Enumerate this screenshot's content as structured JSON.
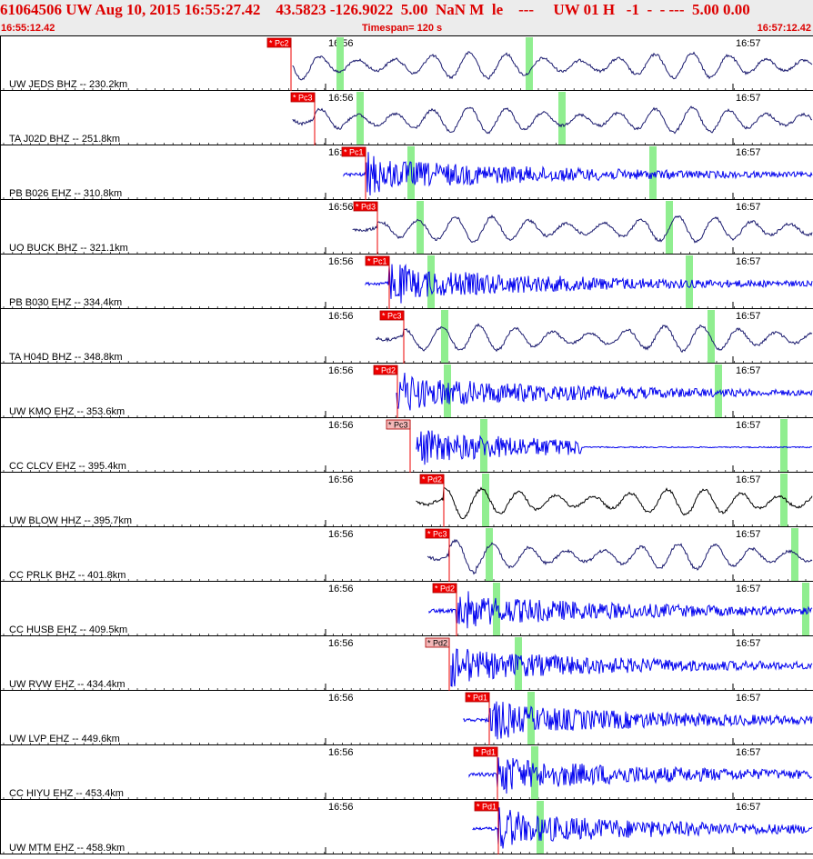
{
  "header": {
    "title": "61064506 UW Aug 10, 2015 16:55:27.42    43.5823 -126.9022  5.00  NaN M  le    ---     UW 01 H   -1  -  - ---  5.00 0.00",
    "start_time": "16:55:12.42",
    "timespan": "Timespan= 120 s",
    "end_time": "16:57:12.42"
  },
  "tick_labels": [
    "16:56",
    "16:57"
  ],
  "colors": {
    "header_text": "#dd0000",
    "pick_flag": "#ee0000",
    "pick_flag_alt": "#f4b8b8",
    "s_marker": "#90ee90",
    "trace_blue": "#0000ee",
    "trace_navy": "#1a1a6e",
    "trace_black": "#000000"
  },
  "traces": [
    {
      "label": "UW JEDS BHZ -- 230.2km",
      "pick": "* Pc2",
      "pick_style": "solid",
      "color": "navy",
      "type": "wave"
    },
    {
      "label": "TA J02D BHZ -- 251.8km",
      "pick": "* Pc3",
      "pick_style": "solid",
      "color": "navy",
      "type": "wave"
    },
    {
      "label": "PB B026 EHZ -- 310.8km",
      "pick": "* Pc1",
      "pick_style": "solid",
      "color": "blue",
      "type": "noise"
    },
    {
      "label": "UO BUCK BHZ -- 321.1km",
      "pick": "* Pd3",
      "pick_style": "solid",
      "color": "navy",
      "type": "wave"
    },
    {
      "label": "PB B030 EHZ -- 334.4km",
      "pick": "* Pc1",
      "pick_style": "solid",
      "color": "blue",
      "type": "noise"
    },
    {
      "label": "TA H04D BHZ -- 348.8km",
      "pick": "* Pc3",
      "pick_style": "solid",
      "color": "navy",
      "type": "wave"
    },
    {
      "label": "UW KMO EHZ -- 353.6km",
      "pick": "* Pd2",
      "pick_style": "solid",
      "color": "blue",
      "type": "noise"
    },
    {
      "label": "CC CLCV EHZ -- 395.4km",
      "pick": "* Pc3",
      "pick_style": "light",
      "color": "blue",
      "type": "noise"
    },
    {
      "label": "UW BLOW HHZ -- 395.7km",
      "pick": "* Pd2",
      "pick_style": "solid",
      "color": "black",
      "type": "wave"
    },
    {
      "label": "CC PRLK BHZ -- 401.8km",
      "pick": "* Pc3",
      "pick_style": "solid",
      "color": "navy",
      "type": "wave"
    },
    {
      "label": "CC HUSB EHZ -- 409.5km",
      "pick": "* Pd2",
      "pick_style": "solid",
      "color": "blue",
      "type": "noise"
    },
    {
      "label": "UW RVW EHZ -- 434.4km",
      "pick": "* Pd2",
      "pick_style": "light",
      "color": "blue",
      "type": "noise"
    },
    {
      "label": "UW LVP EHZ -- 449.6km",
      "pick": "* Pd1",
      "pick_style": "solid",
      "color": "blue",
      "type": "noise"
    },
    {
      "label": "CC HIYU EHZ -- 453.4km",
      "pick": "* Pd1",
      "pick_style": "solid",
      "color": "blue",
      "type": "noise"
    },
    {
      "label": "UW MTM EHZ -- 458.9km",
      "pick": "* Pd1",
      "pick_style": "solid",
      "color": "blue",
      "type": "noise"
    }
  ]
}
